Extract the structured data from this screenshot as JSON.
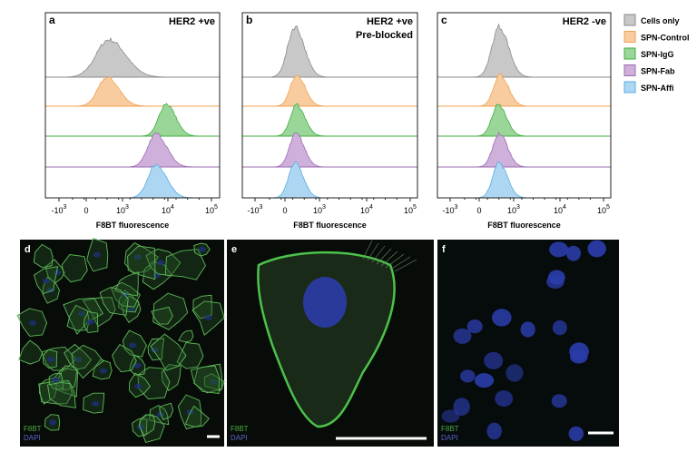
{
  "panels": [
    {
      "label": "a",
      "title": [
        "HER2 +ve"
      ],
      "x_label": "F8BT fluorescence",
      "x_ticks": [
        {
          "base": "-10",
          "exp": "3"
        },
        {
          "base": "0"
        },
        {
          "base": "10",
          "exp": "3"
        },
        {
          "base": "10",
          "exp": "4"
        },
        {
          "base": "10",
          "exp": "5"
        }
      ]
    },
    {
      "label": "b",
      "title": [
        "HER2 +ve",
        "Pre-blocked"
      ],
      "x_label": "F8BT fluorescence",
      "x_ticks": [
        {
          "base": "-10",
          "exp": "3"
        },
        {
          "base": "0"
        },
        {
          "base": "10",
          "exp": "3"
        },
        {
          "base": "10",
          "exp": "4"
        },
        {
          "base": "10",
          "exp": "5"
        }
      ]
    },
    {
      "label": "c",
      "title": [
        "HER2 -ve"
      ],
      "x_label": "F8BT fluorescence",
      "x_ticks": [
        {
          "base": "-10",
          "exp": "3"
        },
        {
          "base": "0"
        },
        {
          "base": "10",
          "exp": "3"
        },
        {
          "base": "10",
          "exp": "4"
        },
        {
          "base": "10",
          "exp": "5"
        }
      ]
    }
  ],
  "legend": [
    "Cells only",
    "SPN-Control",
    "SPN-IgG",
    "SPN-Fab",
    "SPN-Affi"
  ],
  "images": [
    {
      "label": "d",
      "channels": [
        "F8BT",
        "DAPI"
      ]
    },
    {
      "label": "e",
      "channels": [
        "F8BT",
        "DAPI"
      ]
    },
    {
      "label": "f",
      "channels": [
        "F8BT",
        "DAPI"
      ]
    }
  ]
}
